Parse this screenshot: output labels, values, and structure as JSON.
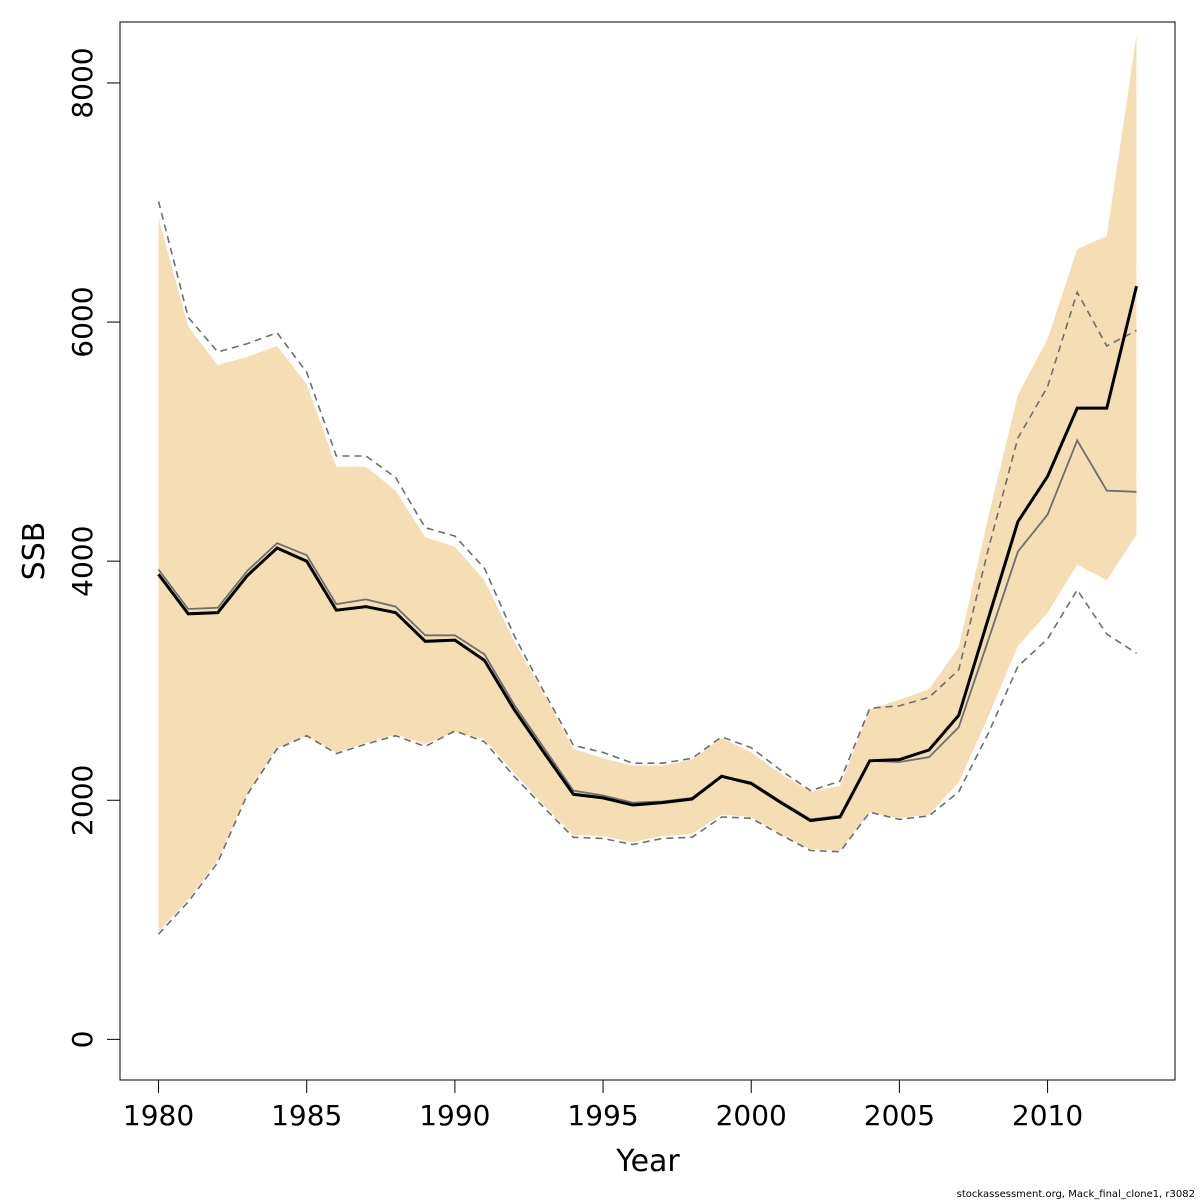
{
  "chart_data": {
    "type": "area",
    "xlabel": "Year",
    "ylabel": "SSB",
    "xlim": [
      1978.7,
      2014.3
    ],
    "ylim": [
      -340,
      8510
    ],
    "xticks": [
      1980,
      1985,
      1990,
      1995,
      2000,
      2005,
      2010
    ],
    "yticks": [
      0,
      2000,
      4000,
      6000,
      8000
    ],
    "grid": false,
    "colors": {
      "band": "#f5deb3",
      "estimate": "#000000",
      "comparison": "#6e6e6e",
      "bounds": "#6e6e6e"
    },
    "x": [
      1980,
      1981,
      1982,
      1983,
      1984,
      1985,
      1986,
      1987,
      1988,
      1989,
      1990,
      1991,
      1992,
      1993,
      1994,
      1995,
      1996,
      1997,
      1998,
      1999,
      2000,
      2001,
      2002,
      2003,
      2004,
      2005,
      2006,
      2007,
      2008,
      2009,
      2010,
      2011,
      2012,
      2013
    ],
    "series": [
      {
        "role": "confidence-band-lower",
        "values": [
          900,
          1170,
          1500,
          2060,
          2440,
          2540,
          2400,
          2480,
          2550,
          2470,
          2570,
          2510,
          2230,
          1960,
          1710,
          1700,
          1650,
          1700,
          1720,
          1880,
          1860,
          1710,
          1590,
          1580,
          1900,
          1850,
          1880,
          2150,
          2700,
          3290,
          3570,
          3970,
          3840,
          4220
        ]
      },
      {
        "role": "confidence-band-upper",
        "values": [
          6870,
          5960,
          5640,
          5710,
          5800,
          5480,
          4790,
          4790,
          4590,
          4200,
          4120,
          3840,
          3330,
          2890,
          2430,
          2350,
          2290,
          2290,
          2340,
          2520,
          2400,
          2220,
          2070,
          2120,
          2760,
          2840,
          2930,
          3280,
          4370,
          5390,
          5860,
          6610,
          6720,
          8400
        ]
      },
      {
        "role": "estimate",
        "values": [
          3890,
          3560,
          3570,
          3880,
          4110,
          4000,
          3590,
          3620,
          3570,
          3330,
          3340,
          3170,
          2760,
          2400,
          2050,
          2020,
          1960,
          1980,
          2010,
          2200,
          2140,
          1980,
          1830,
          1860,
          2330,
          2340,
          2420,
          2710,
          3520,
          4330,
          4710,
          5280,
          5280,
          6300
        ]
      },
      {
        "role": "comparison-estimate",
        "values": [
          3930,
          3600,
          3610,
          3920,
          4150,
          4050,
          3640,
          3680,
          3620,
          3380,
          3380,
          3220,
          2800,
          2440,
          2080,
          2040,
          1980,
          1990,
          2020,
          2200,
          2150,
          1990,
          1840,
          1870,
          2330,
          2320,
          2360,
          2610,
          3340,
          4080,
          4390,
          5010,
          4590,
          4580
        ]
      },
      {
        "role": "comparison-upper-bound",
        "values": [
          7010,
          6040,
          5750,
          5820,
          5910,
          5580,
          4880,
          4880,
          4700,
          4280,
          4210,
          3940,
          3380,
          2910,
          2460,
          2400,
          2310,
          2310,
          2350,
          2530,
          2440,
          2250,
          2080,
          2160,
          2770,
          2790,
          2860,
          3090,
          4100,
          5030,
          5460,
          6250,
          5800,
          5930
        ]
      },
      {
        "role": "comparison-lower-bound",
        "values": [
          880,
          1150,
          1480,
          2050,
          2430,
          2540,
          2390,
          2470,
          2540,
          2450,
          2580,
          2490,
          2200,
          1940,
          1690,
          1680,
          1630,
          1680,
          1690,
          1860,
          1850,
          1710,
          1580,
          1570,
          1900,
          1840,
          1870,
          2070,
          2560,
          3120,
          3350,
          3760,
          3390,
          3230
        ]
      }
    ]
  },
  "footer": {
    "credit": "stockassessment.org, Mack_final_clone1, r3082"
  }
}
